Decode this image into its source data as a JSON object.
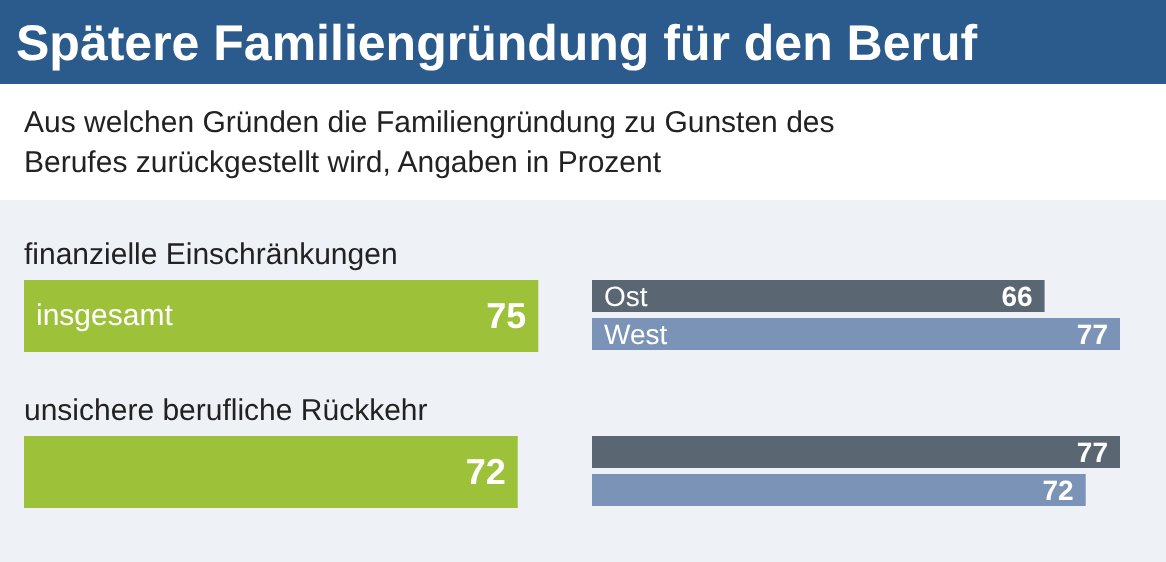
{
  "chart_data": [
    {
      "type": "bar",
      "orientation": "horizontal",
      "title": "Spätere Familiengründung für den Beruf",
      "subtitle": "Aus welchen Gründen die Familiengründung zu Gunsten des Berufes zurückgestellt wird, Angaben in Prozent",
      "categories": [
        "finanzielle Einschränkungen",
        "unsichere berufliche Rückkehr"
      ],
      "series": [
        {
          "name": "insgesamt",
          "color": "#9dc239",
          "values": [
            75,
            72
          ]
        }
      ],
      "data_labels": true
    },
    {
      "type": "bar",
      "orientation": "horizontal",
      "categories": [
        null,
        null
      ],
      "series": [
        {
          "name": "Ost",
          "color": "#5b6673",
          "values": [
            66,
            77
          ]
        },
        {
          "name": "West",
          "color": "#7b93b6",
          "values": [
            77,
            72
          ]
        }
      ],
      "data_labels": true
    }
  ]
}
